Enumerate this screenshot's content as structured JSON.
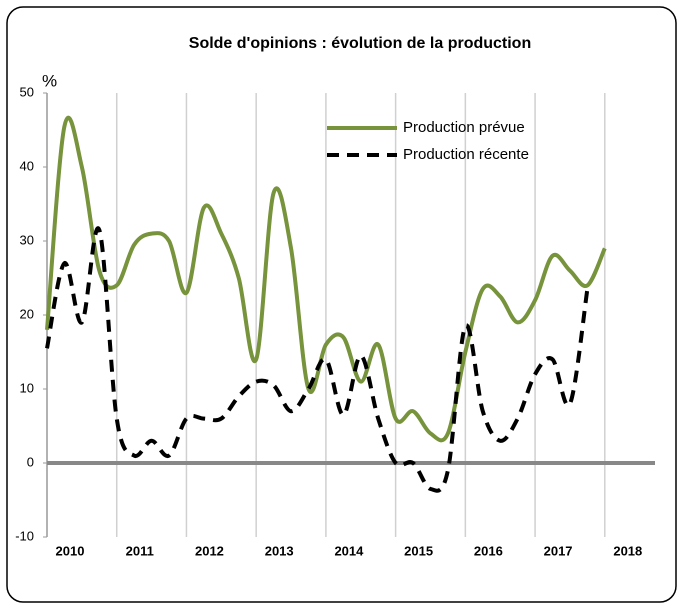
{
  "chart_data": {
    "type": "line",
    "title": "Solde d'opinions : évolution de la production",
    "y_label": "%",
    "x": [
      2010,
      2010.25,
      2010.5,
      2010.75,
      2011,
      2011.25,
      2011.5,
      2011.75,
      2012,
      2012.25,
      2012.5,
      2012.75,
      2013,
      2013.25,
      2013.5,
      2013.75,
      2014,
      2014.25,
      2014.5,
      2014.75,
      2015,
      2015.25,
      2015.5,
      2015.75,
      2016,
      2016.25,
      2016.5,
      2016.75,
      2017,
      2017.25,
      2017.5,
      2017.75,
      2018
    ],
    "series": [
      {
        "name": "Production prévue",
        "color": "#77933c",
        "dash": false,
        "values": [
          18,
          45.5,
          40,
          26,
          24,
          29.5,
          31,
          30,
          23,
          34.5,
          31,
          25,
          14,
          36.5,
          29,
          10,
          16,
          17,
          11,
          16,
          6,
          7,
          4,
          4,
          15,
          23.5,
          22.5,
          19,
          22,
          28,
          26,
          24,
          29
        ]
      },
      {
        "name": "Production récente",
        "color": "#000000",
        "dash": true,
        "values": [
          15.5,
          27,
          19,
          31.5,
          6,
          1,
          3,
          1,
          6,
          6,
          6,
          9,
          11,
          10.5,
          7,
          10,
          14,
          6.5,
          14.5,
          6,
          0,
          0,
          -3.5,
          -1,
          18.5,
          7,
          3,
          6,
          12,
          14,
          8,
          23.5,
          null
        ]
      }
    ],
    "xlim": [
      2010,
      2018.72
    ],
    "xticks": [
      2010,
      2011,
      2012,
      2013,
      2014,
      2015,
      2016,
      2017,
      2018
    ],
    "ylim": [
      -10,
      50
    ],
    "yticks": [
      -10,
      0,
      10,
      20,
      30,
      40,
      50
    ],
    "grid": true,
    "legend": "upper right"
  }
}
